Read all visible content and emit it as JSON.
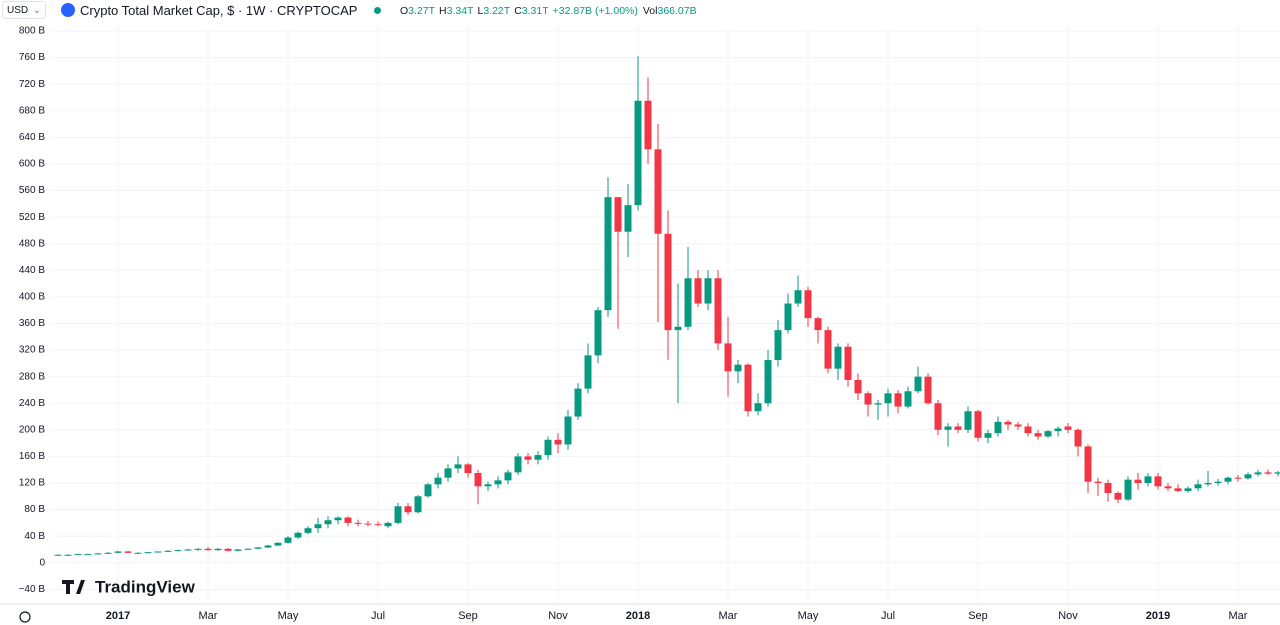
{
  "header": {
    "currency": "USD",
    "symbol": "Crypto Total Market Cap, $ · 1W · CRYPTOCAP",
    "ohlc": [
      {
        "key": "O",
        "val": "3.27T"
      },
      {
        "key": "H",
        "val": "3.34T"
      },
      {
        "key": "L",
        "val": "3.22T"
      },
      {
        "key": "C",
        "val": "3.31T"
      }
    ],
    "change": "+32.87B (+1.00%)",
    "vol_key": "Vol",
    "vol_val": "366.07B"
  },
  "brand": "TradingView",
  "chart_data": {
    "type": "candlestick",
    "up_color": "#089981",
    "down_color": "#f23645",
    "grid": true,
    "ylim": [
      -56,
      809
    ],
    "yticks": [
      {
        "value": -40,
        "label": "−40 B"
      },
      0,
      {
        "value": 40,
        "label": "40 B"
      },
      {
        "value": 80,
        "label": "80 B"
      },
      {
        "value": 120,
        "label": "120 B"
      },
      {
        "value": 160,
        "label": "160 B"
      },
      {
        "value": 200,
        "label": "200 B"
      },
      {
        "value": 240,
        "label": "240 B"
      },
      {
        "value": 280,
        "label": "280 B"
      },
      {
        "value": 320,
        "label": "320 B"
      },
      {
        "value": 360,
        "label": "360 B"
      },
      {
        "value": 400,
        "label": "400 B"
      },
      {
        "value": 440,
        "label": "440 B"
      },
      {
        "value": 480,
        "label": "480 B"
      },
      {
        "value": 520,
        "label": "520 B"
      },
      {
        "value": 560,
        "label": "560 B"
      },
      {
        "value": 600,
        "label": "600 B"
      },
      {
        "value": 640,
        "label": "640 B"
      },
      {
        "value": 680,
        "label": "680 B"
      },
      {
        "value": 720,
        "label": "720 B"
      },
      {
        "value": 760,
        "label": "760 B"
      },
      {
        "value": 800,
        "label": "800 B"
      }
    ],
    "categories": [
      null,
      null,
      null,
      null,
      null,
      null,
      "2017",
      null,
      null,
      null,
      null,
      null,
      null,
      null,
      null,
      "Mar",
      null,
      null,
      null,
      null,
      null,
      null,
      null,
      "May",
      null,
      null,
      null,
      null,
      null,
      null,
      null,
      null,
      "Jul",
      null,
      null,
      null,
      null,
      null,
      null,
      null,
      null,
      "Sep",
      null,
      null,
      null,
      null,
      null,
      null,
      null,
      null,
      "Nov",
      null,
      null,
      null,
      null,
      null,
      null,
      null,
      "2018",
      null,
      null,
      null,
      null,
      null,
      null,
      null,
      null,
      "Mar",
      null,
      null,
      null,
      null,
      null,
      null,
      null,
      "May",
      null,
      null,
      null,
      null,
      null,
      null,
      null,
      "Jul",
      null,
      null,
      null,
      null,
      null,
      null,
      null,
      null,
      "Sep",
      null,
      null,
      null,
      null,
      null,
      null,
      null,
      null,
      "Nov",
      null,
      null,
      null,
      null,
      null,
      null,
      null,
      null,
      "2019",
      null,
      null,
      null,
      null,
      null,
      null,
      null,
      "Mar",
      null,
      null,
      null,
      null
    ],
    "open": [
      12,
      12,
      12,
      13,
      13,
      14,
      15,
      17,
      15,
      15,
      16,
      17,
      18,
      19,
      20,
      21,
      19,
      21,
      18,
      21,
      21,
      23,
      26,
      30,
      38,
      45,
      52,
      58,
      64,
      68,
      60,
      59,
      58,
      55,
      60,
      85,
      76,
      100,
      118,
      128,
      142,
      148,
      135,
      115,
      118,
      124,
      136,
      160,
      155,
      162,
      185,
      178,
      220,
      262,
      312,
      380,
      550,
      498,
      538,
      695,
      622,
      495,
      350,
      355,
      428,
      390,
      428,
      330,
      288,
      298,
      228,
      240,
      305,
      350,
      390,
      410,
      368,
      350,
      292,
      325,
      275,
      255,
      238,
      240,
      255,
      235,
      258,
      280,
      240,
      200,
      205,
      200,
      228,
      188,
      195,
      212,
      208,
      205,
      195,
      190,
      198,
      205,
      200,
      175,
      122,
      120,
      105,
      95,
      125,
      120,
      130,
      115,
      112,
      108,
      112,
      118,
      120,
      122,
      128,
      127,
      133,
      136,
      134
    ],
    "high": [
      13,
      13,
      14,
      14,
      15,
      16,
      18,
      18,
      16,
      16,
      17,
      19,
      20,
      21,
      22,
      24,
      22,
      22,
      21,
      22,
      24,
      27,
      31,
      40,
      47,
      55,
      68,
      70,
      70,
      70,
      65,
      63,
      62,
      62,
      90,
      90,
      102,
      120,
      135,
      148,
      160,
      150,
      140,
      122,
      130,
      140,
      165,
      165,
      168,
      190,
      195,
      230,
      270,
      330,
      385,
      580,
      550,
      570,
      762,
      730,
      660,
      530,
      420,
      475,
      440,
      440,
      440,
      370,
      305,
      300,
      255,
      320,
      365,
      405,
      432,
      415,
      370,
      355,
      330,
      330,
      285,
      258,
      245,
      262,
      260,
      265,
      295,
      285,
      245,
      210,
      210,
      235,
      230,
      200,
      220,
      215,
      212,
      210,
      200,
      200,
      205,
      210,
      202,
      178,
      128,
      125,
      108,
      130,
      135,
      135,
      135,
      120,
      118,
      115,
      125,
      138,
      126,
      130,
      132,
      136,
      140,
      140,
      138
    ],
    "low": [
      11,
      11,
      12,
      12,
      13,
      13,
      14,
      14,
      14,
      14,
      15,
      16,
      17,
      18,
      18,
      18,
      18,
      17,
      17,
      20,
      21,
      22,
      25,
      29,
      36,
      43,
      45,
      52,
      58,
      55,
      55,
      55,
      55,
      52,
      58,
      72,
      74,
      98,
      112,
      122,
      135,
      128,
      88,
      108,
      112,
      118,
      132,
      148,
      148,
      155,
      165,
      170,
      215,
      255,
      300,
      370,
      352,
      460,
      530,
      600,
      362,
      305,
      240,
      350,
      385,
      380,
      320,
      250,
      270,
      220,
      222,
      235,
      295,
      345,
      385,
      355,
      330,
      285,
      275,
      265,
      245,
      220,
      215,
      220,
      225,
      232,
      255,
      238,
      192,
      175,
      195,
      195,
      182,
      180,
      190,
      200,
      200,
      190,
      185,
      188,
      190,
      195,
      160,
      105,
      100,
      92,
      90,
      93,
      110,
      115,
      110,
      108,
      106,
      105,
      108,
      115,
      116,
      118,
      122,
      125,
      130,
      132,
      130
    ],
    "close": [
      12,
      12,
      13,
      13,
      14,
      15,
      17,
      15,
      15,
      16,
      17,
      18,
      19,
      20,
      21,
      19,
      21,
      18,
      20,
      21,
      23,
      26,
      30,
      38,
      45,
      52,
      58,
      64,
      68,
      60,
      59,
      58,
      57,
      60,
      85,
      76,
      100,
      118,
      128,
      142,
      148,
      135,
      115,
      118,
      124,
      136,
      160,
      155,
      162,
      185,
      178,
      220,
      262,
      312,
      380,
      550,
      498,
      538,
      695,
      622,
      495,
      350,
      355,
      428,
      390,
      428,
      330,
      288,
      298,
      228,
      240,
      305,
      350,
      390,
      410,
      368,
      350,
      292,
      325,
      275,
      255,
      238,
      240,
      255,
      235,
      258,
      280,
      240,
      200,
      205,
      200,
      228,
      188,
      195,
      212,
      208,
      205,
      195,
      190,
      198,
      202,
      200,
      175,
      122,
      120,
      105,
      95,
      125,
      120,
      130,
      115,
      112,
      108,
      112,
      118,
      120,
      122,
      128,
      127,
      133,
      136,
      134,
      136
    ]
  }
}
